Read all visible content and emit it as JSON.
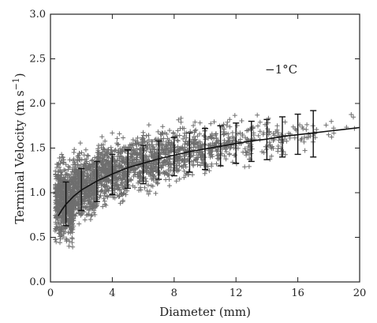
{
  "chart_data": {
    "type": "scatter",
    "title": "",
    "xlabel": "Diameter (mm)",
    "ylabel_main": "Terminal Velocity (m s",
    "ylabel_sup": "−1",
    "ylabel_close": ")",
    "annotation": "−1°C",
    "xlim": [
      0,
      20
    ],
    "ylim": [
      0.0,
      3.0
    ],
    "x_ticks": [
      0,
      4,
      8,
      12,
      16,
      20
    ],
    "x_tick_labels": [
      "0",
      "4",
      "8",
      "12",
      "16",
      "20"
    ],
    "y_ticks": [
      0.0,
      0.5,
      1.0,
      1.5,
      2.0,
      2.5,
      3.0
    ],
    "y_tick_labels": [
      "0.0",
      "0.5",
      "1.0",
      "1.5",
      "2.0",
      "2.5",
      "3.0"
    ],
    "marker": "+",
    "marker_color": "#6e6e6e",
    "line_color": "#111111",
    "grid": false,
    "fit_curve": {
      "x": [
        0.5,
        0.75,
        1,
        1.5,
        2,
        3,
        4,
        5,
        6,
        7,
        8,
        9,
        10,
        11,
        12,
        13,
        14,
        15,
        16,
        17,
        18,
        19,
        20
      ],
      "y": [
        0.74,
        0.81,
        0.87,
        0.96,
        1.03,
        1.13,
        1.21,
        1.28,
        1.33,
        1.38,
        1.42,
        1.46,
        1.49,
        1.52,
        1.55,
        1.58,
        1.6,
        1.63,
        1.65,
        1.67,
        1.69,
        1.71,
        1.73
      ]
    },
    "error_bars": [
      {
        "x": 1,
        "mean": 0.87,
        "low": 0.63,
        "high": 1.12
      },
      {
        "x": 2,
        "mean": 1.03,
        "low": 0.8,
        "high": 1.27
      },
      {
        "x": 3,
        "mean": 1.13,
        "low": 0.9,
        "high": 1.35
      },
      {
        "x": 4,
        "mean": 1.21,
        "low": 0.98,
        "high": 1.43
      },
      {
        "x": 5,
        "mean": 1.28,
        "low": 1.05,
        "high": 1.48
      },
      {
        "x": 6,
        "mean": 1.33,
        "low": 1.1,
        "high": 1.53
      },
      {
        "x": 7,
        "mean": 1.38,
        "low": 1.15,
        "high": 1.58
      },
      {
        "x": 8,
        "mean": 1.42,
        "low": 1.19,
        "high": 1.62
      },
      {
        "x": 9,
        "mean": 1.46,
        "low": 1.23,
        "high": 1.67
      },
      {
        "x": 10,
        "mean": 1.49,
        "low": 1.26,
        "high": 1.72
      },
      {
        "x": 11,
        "mean": 1.52,
        "low": 1.3,
        "high": 1.75
      },
      {
        "x": 12,
        "mean": 1.55,
        "low": 1.33,
        "high": 1.78
      },
      {
        "x": 13,
        "mean": 1.58,
        "low": 1.35,
        "high": 1.8
      },
      {
        "x": 14,
        "mean": 1.6,
        "low": 1.37,
        "high": 1.82
      },
      {
        "x": 15,
        "mean": 1.63,
        "low": 1.4,
        "high": 1.85
      },
      {
        "x": 16,
        "mean": 1.65,
        "low": 1.43,
        "high": 1.88
      },
      {
        "x": 17,
        "mean": 1.67,
        "low": 1.4,
        "high": 1.92
      }
    ],
    "scatter_groups": [
      {
        "x_min": 0.3,
        "x_max": 1.5,
        "y_center": 0.9,
        "y_spread": 0.55,
        "count": 650
      },
      {
        "x_min": 1.5,
        "x_max": 3.0,
        "y_center": 1.08,
        "y_spread": 0.45,
        "count": 520
      },
      {
        "x_min": 3.0,
        "x_max": 5.0,
        "y_center": 1.24,
        "y_spread": 0.42,
        "count": 460
      },
      {
        "x_min": 5.0,
        "x_max": 7.0,
        "y_center": 1.35,
        "y_spread": 0.4,
        "count": 340
      },
      {
        "x_min": 7.0,
        "x_max": 9.0,
        "y_center": 1.44,
        "y_spread": 0.38,
        "count": 250
      },
      {
        "x_min": 9.0,
        "x_max": 11.0,
        "y_center": 1.5,
        "y_spread": 0.36,
        "count": 170
      },
      {
        "x_min": 11.0,
        "x_max": 13.0,
        "y_center": 1.56,
        "y_spread": 0.34,
        "count": 110
      },
      {
        "x_min": 13.0,
        "x_max": 15.0,
        "y_center": 1.6,
        "y_spread": 0.3,
        "count": 60
      },
      {
        "x_min": 15.0,
        "x_max": 17.0,
        "y_center": 1.64,
        "y_spread": 0.28,
        "count": 30
      },
      {
        "x_min": 17.0,
        "x_max": 20.0,
        "y_center": 1.68,
        "y_spread": 0.2,
        "count": 14
      }
    ]
  }
}
